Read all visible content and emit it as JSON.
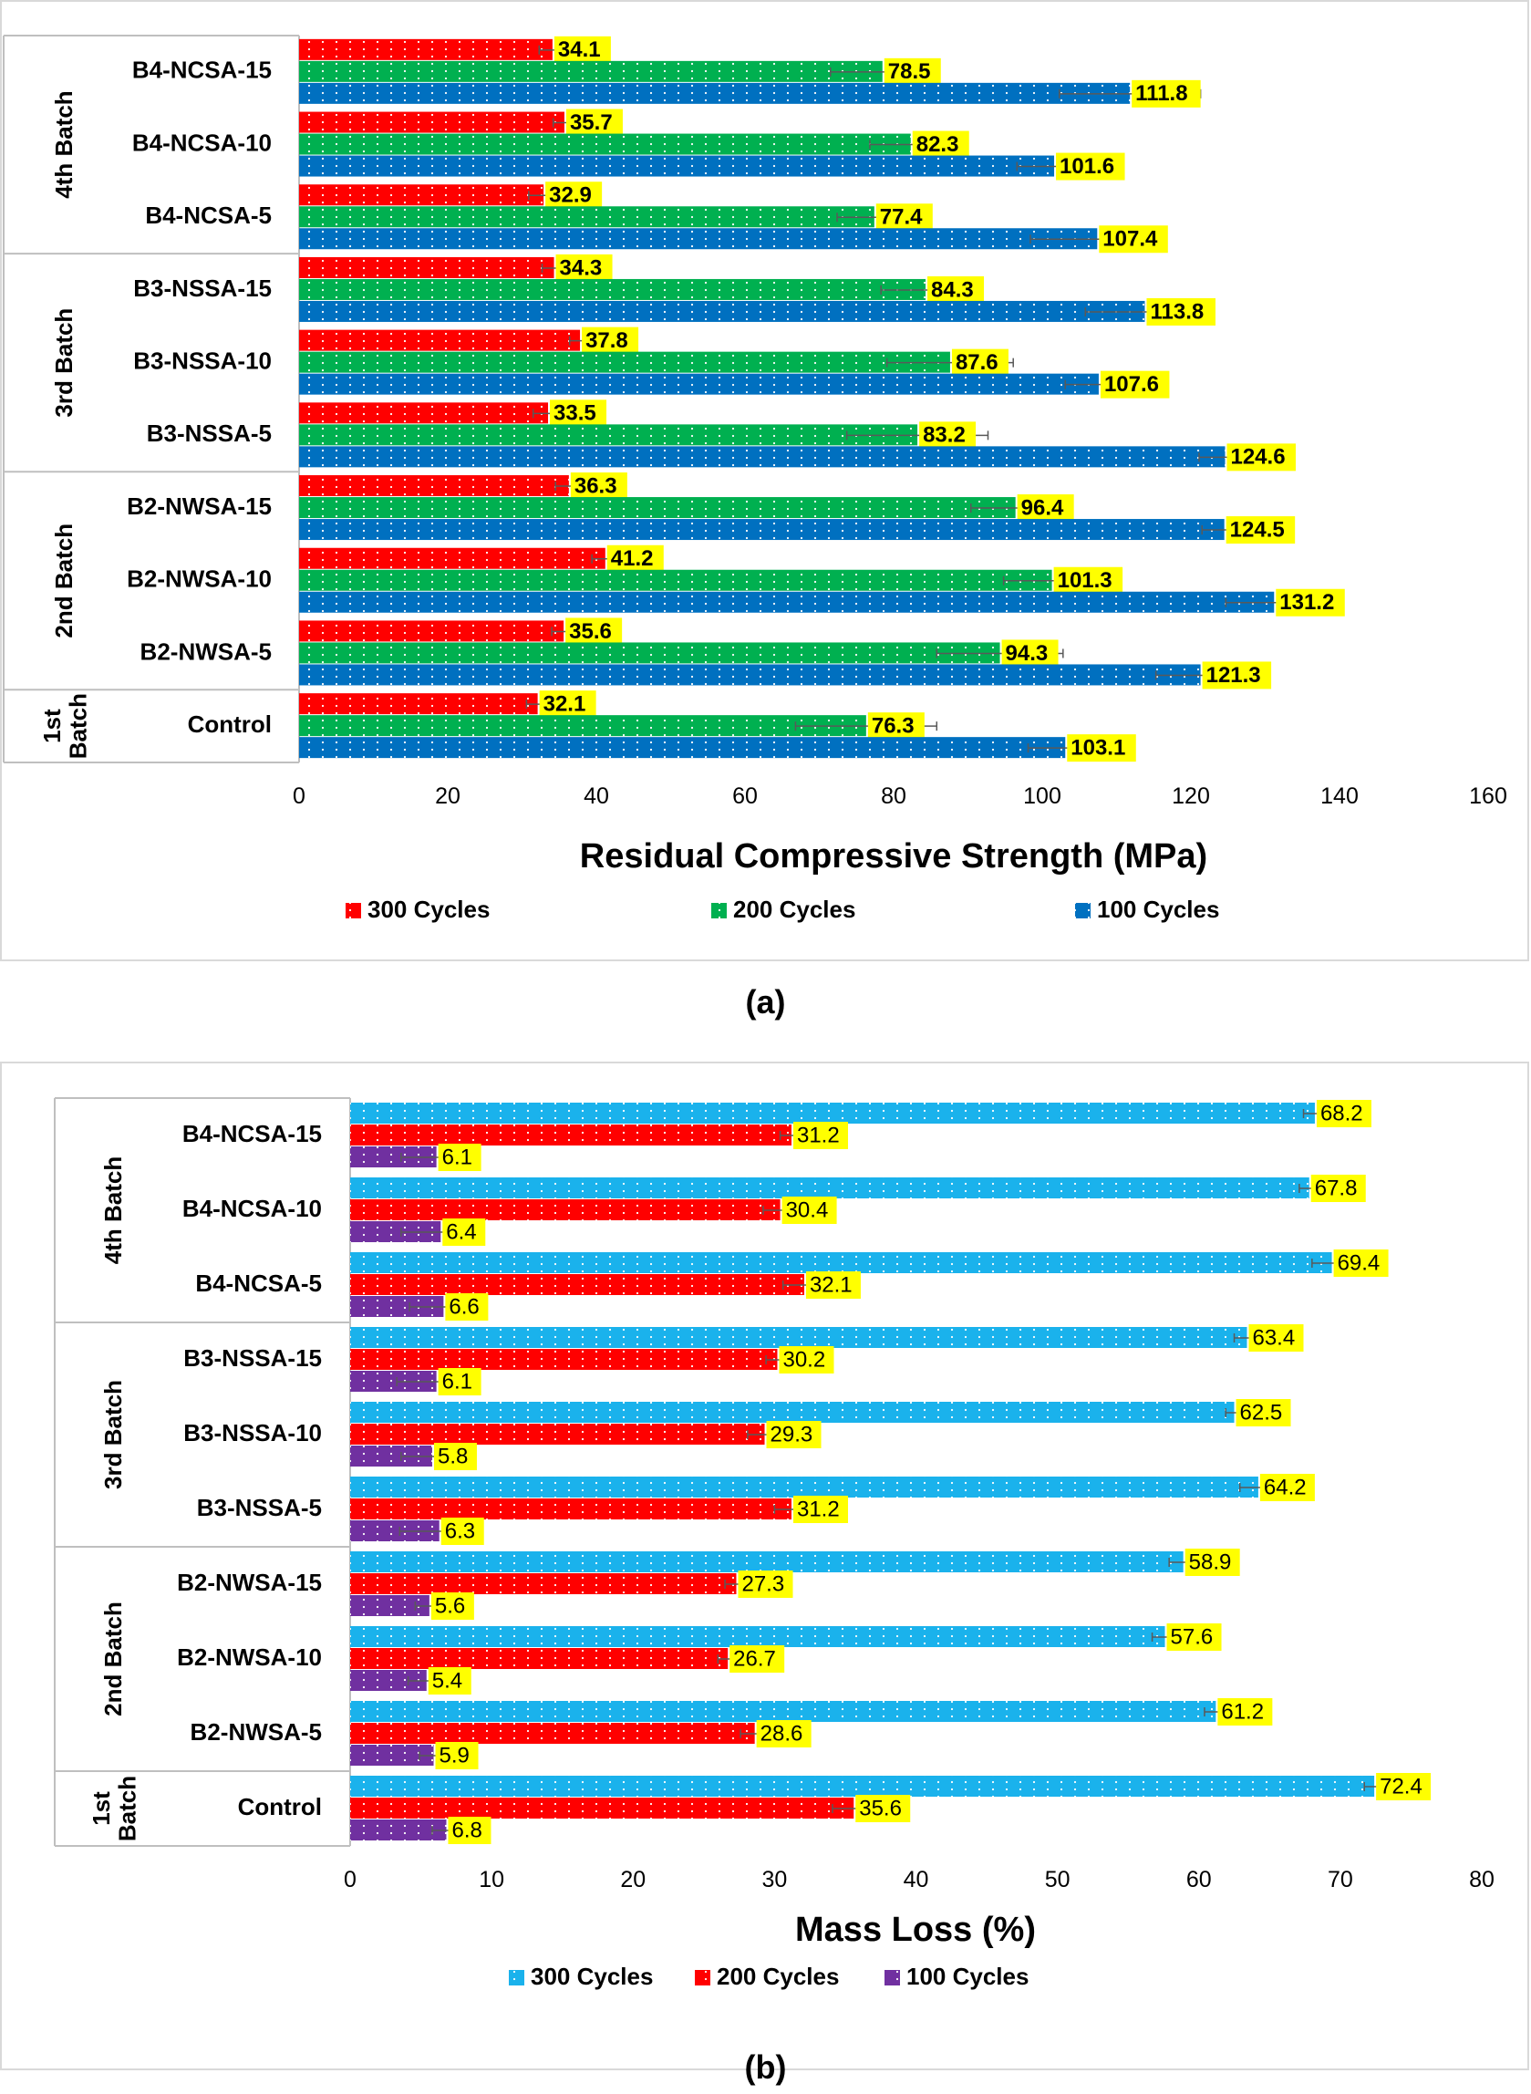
{
  "captions": {
    "a": "(a)",
    "b": "(b)"
  },
  "chart_data": [
    {
      "type": "bar",
      "orientation": "horizontal",
      "xlabel": "Residual Compressive Strength (MPa)",
      "xlim": [
        0,
        160
      ],
      "xticks": [
        0,
        20,
        40,
        60,
        80,
        100,
        120,
        140,
        160
      ],
      "legend_position": "bottom",
      "groups": [
        {
          "label": "4th Batch",
          "categories": [
            "B4-NCSA-15",
            "B4-NCSA-10",
            "B4-NCSA-5"
          ]
        },
        {
          "label": "3rd Batch",
          "categories": [
            "B3-NSSA-15",
            "B3-NSSA-10",
            "B3-NSSA-5"
          ]
        },
        {
          "label": "2nd Batch",
          "categories": [
            "B2-NWSA-15",
            "B2-NWSA-10",
            "B2-NWSA-5"
          ]
        },
        {
          "label": "1st Batch",
          "categories": [
            "Control"
          ]
        }
      ],
      "series": [
        {
          "name": "300 Cycles",
          "color": "#ff0000",
          "values": [
            34.1,
            35.7,
            32.9,
            34.3,
            37.8,
            33.5,
            36.3,
            41.2,
            35.6,
            32.1
          ],
          "error": [
            1.8,
            1.5,
            2.0,
            1.6,
            1.4,
            2.0,
            1.8,
            1.8,
            1.6,
            1.5
          ]
        },
        {
          "name": "200 Cycles",
          "color": "#00b050",
          "values": [
            78.5,
            82.3,
            77.4,
            84.3,
            87.6,
            83.2,
            96.4,
            101.3,
            94.3,
            76.3
          ],
          "error": [
            7.0,
            5.5,
            5.0,
            6.0,
            8.5,
            9.5,
            6.0,
            6.5,
            8.5,
            9.5
          ]
        },
        {
          "name": "100 Cycles",
          "color": "#0070c0",
          "values": [
            111.8,
            101.6,
            107.4,
            113.8,
            107.6,
            124.6,
            124.5,
            131.2,
            121.3,
            103.1
          ],
          "error": [
            9.5,
            5.0,
            9.0,
            8.0,
            4.5,
            3.5,
            3.0,
            6.5,
            6.0,
            5.0
          ]
        }
      ]
    },
    {
      "type": "bar",
      "orientation": "horizontal",
      "xlabel": "Mass Loss (%)",
      "xlim": [
        0,
        80
      ],
      "xticks": [
        0,
        10,
        20,
        30,
        40,
        50,
        60,
        70,
        80
      ],
      "legend_position": "bottom",
      "groups": [
        {
          "label": "4th Batch",
          "categories": [
            "B4-NCSA-15",
            "B4-NCSA-10",
            "B4-NCSA-5"
          ]
        },
        {
          "label": "3rd Batch",
          "categories": [
            "B3-NSSA-15",
            "B3-NSSA-10",
            "B3-NSSA-5"
          ]
        },
        {
          "label": "2nd Batch",
          "categories": [
            "B2-NWSA-15",
            "B2-NWSA-10",
            "B2-NWSA-5"
          ]
        },
        {
          "label": "1st Batch",
          "categories": [
            "Control"
          ]
        }
      ],
      "series": [
        {
          "name": "300 Cycles",
          "color": "#1ab2ec",
          "values": [
            68.2,
            67.8,
            69.4,
            63.4,
            62.5,
            64.2,
            58.9,
            57.6,
            61.2,
            72.4
          ],
          "error": [
            0.8,
            0.7,
            1.4,
            0.9,
            0.6,
            1.3,
            1.0,
            0.9,
            0.8,
            0.7
          ]
        },
        {
          "name": "200 Cycles",
          "color": "#ff0000",
          "values": [
            31.2,
            30.4,
            32.1,
            30.2,
            29.3,
            31.2,
            27.3,
            26.7,
            28.6,
            35.6
          ],
          "error": [
            0.8,
            1.2,
            1.5,
            0.8,
            1.2,
            1.2,
            0.8,
            0.7,
            1.0,
            1.5
          ]
        },
        {
          "name": "100 Cycles",
          "color": "#7030a0",
          "values": [
            6.1,
            6.4,
            6.6,
            6.1,
            5.8,
            6.3,
            5.6,
            5.4,
            5.9,
            6.8
          ],
          "error": [
            2.5,
            2.8,
            2.4,
            2.8,
            2.2,
            2.8,
            1.0,
            1.3,
            1.0,
            1.0
          ]
        }
      ]
    }
  ]
}
